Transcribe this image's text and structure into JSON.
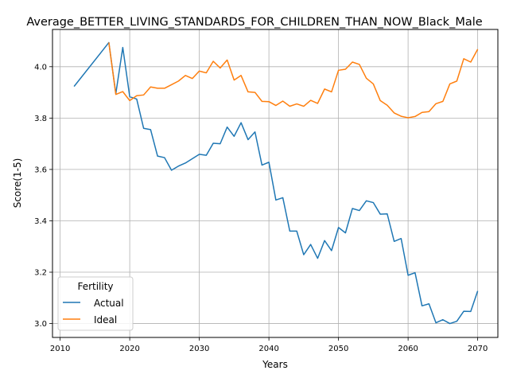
{
  "chart_data": {
    "type": "line",
    "title": "Average_BETTER_LIVING_STANDARDS_FOR_CHILDREN_THAN_NOW_Black_Male",
    "xlabel": "Years",
    "ylabel": "Score(1-5)",
    "xlim": [
      2008.9,
      2072.9
    ],
    "ylim": [
      2.946,
      4.145
    ],
    "xticks": [
      2010,
      2020,
      2030,
      2040,
      2050,
      2060,
      2070
    ],
    "yticks": [
      3.0,
      3.2,
      3.4,
      3.6,
      3.8,
      4.0
    ],
    "xtick_labels": [
      "2010",
      "2020",
      "2030",
      "2040",
      "2050",
      "2060",
      "2070"
    ],
    "ytick_labels": [
      "3.0",
      "3.2",
      "3.4",
      "3.6",
      "3.8",
      "4.0"
    ],
    "grid": true,
    "legend": {
      "title": "Fertility",
      "position": "lower-left"
    },
    "series": [
      {
        "name": "Actual",
        "color": "#1f77b4",
        "x": [
          2012,
          2017,
          2018,
          2019,
          2020,
          2021,
          2022,
          2023,
          2024,
          2025,
          2026,
          2027,
          2028,
          2029,
          2030,
          2031,
          2032,
          2033,
          2034,
          2035,
          2036,
          2037,
          2038,
          2039,
          2040,
          2041,
          2042,
          2043,
          2044,
          2045,
          2046,
          2047,
          2048,
          2049,
          2050,
          2051,
          2052,
          2053,
          2054,
          2055,
          2056,
          2057,
          2058,
          2059,
          2060,
          2061,
          2062,
          2063,
          2064,
          2065,
          2066,
          2067,
          2068,
          2069,
          2070
        ],
        "y": [
          3.923,
          4.094,
          3.895,
          4.075,
          3.883,
          3.874,
          3.76,
          3.755,
          3.652,
          3.646,
          3.597,
          3.613,
          3.625,
          3.642,
          3.659,
          3.655,
          3.702,
          3.7,
          3.765,
          3.729,
          3.782,
          3.716,
          3.746,
          3.617,
          3.628,
          3.481,
          3.49,
          3.36,
          3.36,
          3.268,
          3.308,
          3.254,
          3.323,
          3.284,
          3.374,
          3.353,
          3.448,
          3.44,
          3.478,
          3.471,
          3.426,
          3.427,
          3.32,
          3.331,
          3.188,
          3.198,
          3.069,
          3.077,
          3.003,
          3.015,
          3.0,
          3.009,
          3.048,
          3.047,
          3.127
        ]
      },
      {
        "name": "Ideal",
        "color": "#ff7f0e",
        "x": [
          2017,
          2018,
          2019,
          2020,
          2021,
          2022,
          2023,
          2024,
          2025,
          2026,
          2027,
          2028,
          2029,
          2030,
          2031,
          2032,
          2033,
          2034,
          2035,
          2036,
          2037,
          2038,
          2039,
          2040,
          2041,
          2042,
          2043,
          2044,
          2045,
          2046,
          2047,
          2048,
          2049,
          2050,
          2051,
          2052,
          2053,
          2054,
          2055,
          2056,
          2057,
          2058,
          2059,
          2060,
          2061,
          2062,
          2063,
          2064,
          2065,
          2066,
          2067,
          2068,
          2069,
          2070
        ],
        "y": [
          4.094,
          3.892,
          3.903,
          3.868,
          3.887,
          3.89,
          3.921,
          3.916,
          3.916,
          3.93,
          3.944,
          3.966,
          3.954,
          3.983,
          3.976,
          4.021,
          3.995,
          4.026,
          3.948,
          3.966,
          3.902,
          3.9,
          3.865,
          3.864,
          3.849,
          3.866,
          3.846,
          3.855,
          3.846,
          3.869,
          3.857,
          3.913,
          3.902,
          3.986,
          3.99,
          4.018,
          4.009,
          3.955,
          3.933,
          3.868,
          3.85,
          3.82,
          3.807,
          3.801,
          3.806,
          3.822,
          3.825,
          3.856,
          3.865,
          3.933,
          3.944,
          4.031,
          4.018,
          4.068
        ]
      }
    ]
  }
}
